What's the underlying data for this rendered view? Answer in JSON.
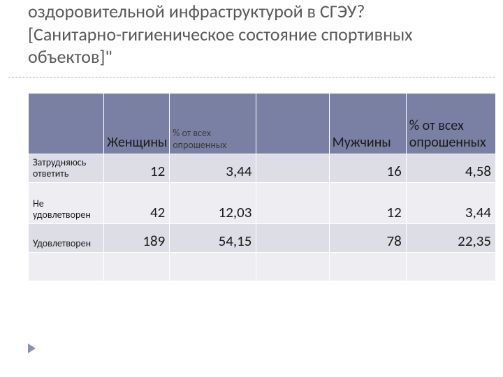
{
  "title": {
    "line1": "оздоровительной инфраструктурой в СГЭУ?",
    "line2": "[Санитарно-гигиеническое состояние спортивных объектов]\""
  },
  "table": {
    "header_bg": "#7a80a4",
    "row_odd_bg": "#dcdde5",
    "row_even_bg": "#eeeef2",
    "columns": {
      "c0": "",
      "c1": "Женщины",
      "c2": "% от всех опрошенных",
      "c3": "",
      "c4": "Мужчины",
      "c5": "% от всех опрошенных"
    },
    "rows": [
      {
        "label": "Затрудняюсь ответить",
        "women": "12",
        "women_pct": "3,44",
        "blank": "",
        "men": "16",
        "men_pct": "4,58"
      },
      {
        "label": "Не удовлетворен",
        "women": "42",
        "women_pct": "12,03",
        "blank": "",
        "men": "12",
        "men_pct": "3,44"
      },
      {
        "label": "Удовлетворен",
        "women": "189",
        "women_pct": "54,15",
        "blank": "",
        "men": "78",
        "men_pct": "22,35"
      }
    ]
  }
}
